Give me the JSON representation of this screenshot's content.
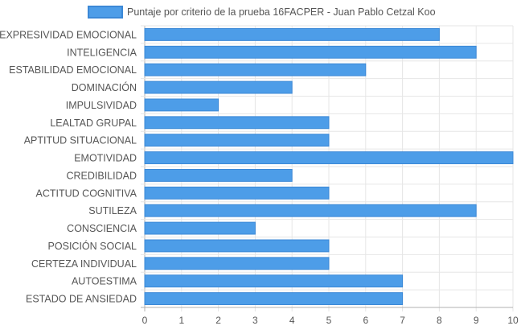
{
  "chart_data": {
    "type": "bar",
    "orientation": "horizontal",
    "legend_position": "top",
    "grid": true,
    "xlim": [
      0,
      10
    ],
    "x_ticks": [
      "0",
      "1",
      "2",
      "3",
      "4",
      "5",
      "6",
      "7",
      "8",
      "9",
      "10"
    ],
    "categories": [
      "EXPRESIVIDAD EMOCIONAL",
      "INTELIGENCIA",
      "ESTABILIDAD EMOCIONAL",
      "DOMINACIÓN",
      "IMPULSIVIDAD",
      "LEALTAD GRUPAL",
      "APTITUD SITUACIONAL",
      "EMOTIVIDAD",
      "CREDIBILIDAD",
      "ACTITUD COGNITIVA",
      "SUTILEZA",
      "CONSCIENCIA",
      "POSICIÓN SOCIAL",
      "CERTEZA INDIVIDUAL",
      "AUTOESTIMA",
      "ESTADO DE ANSIEDAD"
    ],
    "series": [
      {
        "name": "Puntaje por criterio de la prueba 16FACPER - Juan Pablo Cetzal Koo",
        "values": [
          8,
          9,
          6,
          4,
          2,
          5,
          5,
          10,
          4,
          5,
          9,
          3,
          5,
          5,
          7,
          7
        ]
      }
    ],
    "colors": {
      "bar_fill": "#4d9de8",
      "bar_stroke": "#3b88d6",
      "grid": "#e6e6e6",
      "axis": "#b0b0b0",
      "text": "#555555"
    }
  }
}
